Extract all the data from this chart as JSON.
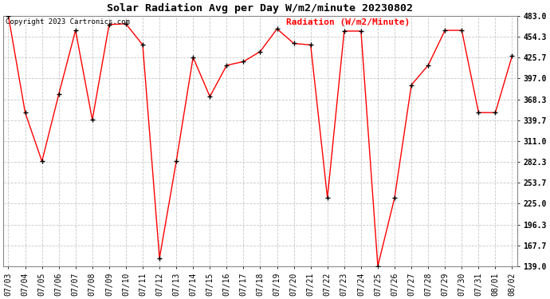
{
  "title": "Solar Radiation Avg per Day W/m2/minute 20230802",
  "copyright": "Copyright 2023 Cartronics.com",
  "legend_label": "Radiation (W/m2/Minute)",
  "dates": [
    "07/03",
    "07/04",
    "07/05",
    "07/06",
    "07/07",
    "07/08",
    "07/09",
    "07/10",
    "07/11",
    "07/12",
    "07/13",
    "07/14",
    "07/15",
    "07/16",
    "07/17",
    "07/18",
    "07/19",
    "07/20",
    "07/21",
    "07/22",
    "07/23",
    "07/24",
    "07/25",
    "07/26",
    "07/27",
    "07/28",
    "07/29",
    "07/30",
    "07/31",
    "08/01",
    "08/02"
  ],
  "values": [
    483.0,
    350.0,
    283.0,
    375.0,
    463.0,
    340.0,
    471.0,
    472.0,
    443.0,
    150.0,
    283.0,
    426.0,
    372.0,
    415.0,
    420.0,
    434.0,
    465.0,
    445.0,
    443.0,
    233.0,
    462.0,
    462.0,
    139.0,
    233.0,
    388.0,
    415.0,
    463.0,
    463.0,
    350.0,
    350.0,
    428.0
  ],
  "ylim_min": 139.0,
  "ylim_max": 483.0,
  "yticks": [
    139.0,
    167.7,
    196.3,
    225.0,
    253.7,
    282.3,
    311.0,
    339.7,
    368.3,
    397.0,
    425.7,
    454.3,
    483.0
  ],
  "line_color": "red",
  "marker_color": "black",
  "grid_color": "#c8c8c8",
  "bg_color": "white",
  "title_fontsize": 9.5,
  "copyright_fontsize": 6.5,
  "legend_fontsize": 8,
  "tick_fontsize": 7,
  "border_color": "#888888"
}
